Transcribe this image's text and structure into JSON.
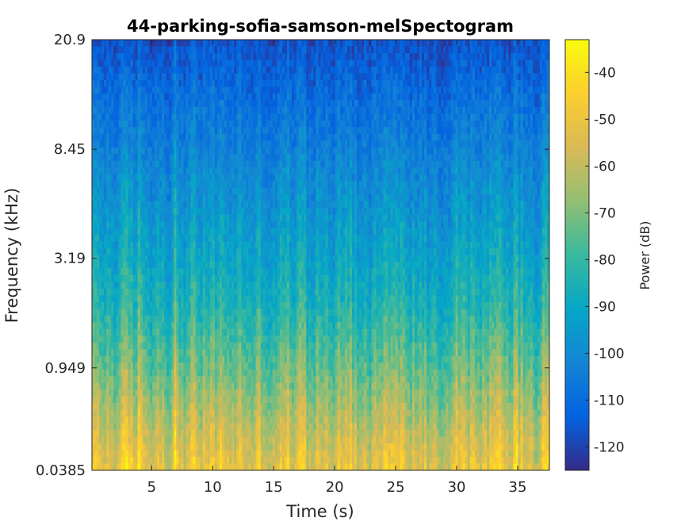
{
  "chart_data": {
    "type": "heatmap",
    "title": "44-parking-sofia-samson-melSpectogram",
    "xlabel": "Time (s)",
    "ylabel": "Frequency (kHz)",
    "x_ticks": [
      "5",
      "10",
      "15",
      "20",
      "25",
      "30",
      "35"
    ],
    "x_tick_values": [
      5,
      10,
      15,
      20,
      25,
      30,
      35
    ],
    "xlim": [
      0.1,
      37.6
    ],
    "y_ticks": [
      "20.9",
      "8.45",
      "3.19",
      "0.949",
      "0.0385"
    ],
    "y_tick_values": [
      20.9,
      8.45,
      3.19,
      0.949,
      0.0385
    ],
    "y_scale": "mel",
    "colorbar": {
      "label": "Power (dB)",
      "ticks": [
        "-40",
        "-50",
        "-60",
        "-70",
        "-80",
        "-90",
        "-100",
        "-110",
        "-120"
      ],
      "tick_values": [
        -40,
        -50,
        -60,
        -70,
        -80,
        -90,
        -100,
        -110,
        -120
      ],
      "range": [
        -125,
        -33
      ],
      "colormap": "parula"
    },
    "power_profile_db": {
      "note_frequency_kHz": [
        0.0385,
        0.3,
        0.949,
        2.0,
        3.19,
        5.5,
        8.45,
        14.0,
        20.9
      ],
      "typical_power_dB": [
        -50,
        -58,
        -72,
        -84,
        -90,
        -97,
        -103,
        -110,
        -117
      ]
    }
  }
}
